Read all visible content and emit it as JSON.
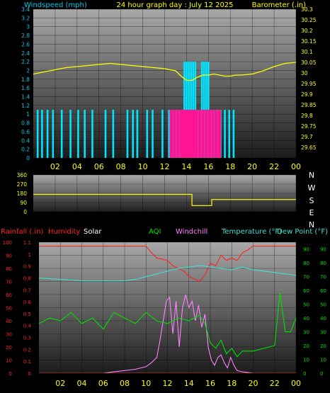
{
  "colors": {
    "background": "#000000",
    "wind_axis": "#00c8e6",
    "wind_bar": "#00e5ff",
    "gust_bar": "#ff1493",
    "barometer": "#ffff00",
    "rainfall": "#ff2020",
    "humidity": "#ff2020",
    "solar": "#ffffff",
    "aqi": "#00e000",
    "windchill": "#ff80ff",
    "temperature": "#40e0d0",
    "dew_point": "#40e0d0",
    "wind_direction": "#ffff00",
    "tick_text": "#ffff00",
    "plot_gradient_top": "#a8a8a8",
    "plot_gradient_bottom": "#1c1c1c"
  },
  "chart_data": [
    {
      "type": "line",
      "title": "24 hour graph day : July 12 2025",
      "xlabel": "",
      "x_ticks": [
        "02",
        "04",
        "06",
        "08",
        "10",
        "12",
        "14",
        "16",
        "18",
        "20",
        "22",
        "00"
      ],
      "y_left": {
        "label": "Windspeed (mph)",
        "lim": [
          0,
          3.4
        ],
        "ticks": [
          "0",
          "0.2",
          "0.4",
          "0.6",
          "0.8",
          "1",
          "1.2",
          "1.4",
          "1.6",
          "1.8",
          "2",
          "2.2",
          "2.4",
          "2.6",
          "2.8",
          "3",
          "3.2",
          "3.4"
        ]
      },
      "y_right": {
        "label": "Barometer (.in)",
        "lim": [
          29.6,
          30.3
        ],
        "ticks": [
          "29.65",
          "29.7",
          "29.75",
          "29.8",
          "29.85",
          "29.9",
          "29.95",
          "30",
          "30.05",
          "30.1",
          "30.15",
          "30.2",
          "30.25",
          "30.3"
        ]
      },
      "grid": true,
      "series": [
        {
          "kind": "bar",
          "axis": "left",
          "x": [
            0.4,
            0.8,
            1.3,
            1.8,
            2.6,
            3.4,
            4.1,
            4.7,
            5.4,
            6.6,
            7.3,
            8.6,
            9.1,
            9.5,
            10.4,
            10.9,
            11.8,
            12.4,
            12.7,
            13.0,
            13.2,
            13.4,
            13.6,
            13.8,
            14.0,
            14.2,
            14.4,
            14.6,
            14.8,
            15.0,
            15.2,
            15.4,
            15.6,
            15.8,
            16.0,
            16.2,
            16.4,
            16.6,
            16.8,
            17.1,
            17.5,
            17.9,
            18.3
          ],
          "values": [
            1.1,
            1.1,
            1.1,
            1.1,
            1.1,
            1.1,
            1.1,
            1.1,
            1.1,
            1.1,
            1.1,
            1.1,
            1.1,
            1.1,
            1.1,
            1.1,
            1.1,
            1.1,
            1.1,
            1.1,
            1.1,
            1.1,
            1.1,
            2.2,
            2.2,
            2.2,
            2.2,
            2.2,
            2.2,
            1.1,
            1.1,
            2.2,
            2.2,
            2.2,
            2.2,
            1.1,
            1.1,
            1.1,
            1.1,
            1.1,
            1.1,
            1.1,
            1.1
          ]
        },
        {
          "kind": "bar",
          "axis": "left",
          "x": [
            12.6,
            12.9,
            13.2,
            13.5,
            13.7,
            13.9,
            14.1,
            14.3,
            14.5,
            14.7,
            14.9,
            15.2,
            15.5,
            15.8,
            16.1,
            16.4,
            16.7,
            17.0
          ],
          "values": [
            1.1,
            1.1,
            1.1,
            1.1,
            1.1,
            1.1,
            1.1,
            1.1,
            1.1,
            1.1,
            1.1,
            1.1,
            1.1,
            1.1,
            1.1,
            1.1,
            1.1,
            1.1
          ]
        },
        {
          "kind": "line",
          "axis": "right",
          "x": [
            0,
            1,
            2,
            3,
            4,
            5,
            6,
            7,
            8,
            9,
            10,
            11,
            12,
            13,
            13.5,
            14,
            14.5,
            15,
            15.5,
            16,
            16.5,
            17,
            17.5,
            18,
            18.5,
            19,
            20,
            21,
            22,
            23,
            24
          ],
          "values": [
            29.995,
            30.005,
            30.015,
            30.025,
            30.03,
            30.035,
            30.04,
            30.045,
            30.04,
            30.035,
            30.03,
            30.025,
            30.02,
            30.01,
            29.985,
            29.965,
            29.965,
            29.98,
            29.99,
            29.99,
            29.995,
            29.99,
            29.985,
            29.985,
            29.99,
            29.99,
            29.995,
            30.01,
            30.03,
            30.045,
            30.05
          ]
        }
      ]
    },
    {
      "type": "line",
      "title": "",
      "y_left": {
        "lim": [
          0,
          360
        ],
        "ticks": [
          "0",
          "90",
          "180",
          "270",
          "360"
        ]
      },
      "y_right_labels": [
        "N",
        "W",
        "S",
        "E",
        "N"
      ],
      "grid": true,
      "series": [
        {
          "kind": "step",
          "x": [
            0,
            14.5,
            14.5,
            16.3,
            16.3,
            24
          ],
          "values": [
            170,
            170,
            60,
            60,
            120,
            120
          ]
        }
      ]
    },
    {
      "type": "line",
      "title": "",
      "x_ticks": [
        "02",
        "04",
        "06",
        "08",
        "10",
        "12",
        "14",
        "16",
        "18",
        "20",
        "22",
        "00"
      ],
      "y_left_rain": {
        "label": "Rainfall (.in)",
        "lim": [
          0,
          1.1
        ],
        "ticks": [
          "0",
          "0.1",
          "0.2",
          "0.3",
          "0.4",
          "0.5",
          "0.6",
          "0.7",
          "0.8",
          "0.9",
          "1",
          "1.1"
        ]
      },
      "y_left_pct": {
        "lim": [
          0,
          100
        ],
        "ticks": [
          "0",
          "10",
          "20",
          "30",
          "40",
          "50",
          "60",
          "70",
          "80",
          "90",
          "100"
        ]
      },
      "y_right_temp": {
        "label": "Temperature (°F)",
        "lim": [
          0,
          95
        ],
        "ticks": [
          "0",
          "10",
          "20",
          "30",
          "40",
          "50",
          "60",
          "70",
          "80",
          "90"
        ]
      },
      "y_right_dew": {
        "label": "Dew Point (°F)",
        "lim": [
          0,
          95
        ],
        "ticks": [
          "0",
          "10",
          "20",
          "30",
          "40",
          "50",
          "60",
          "70",
          "80",
          "90"
        ]
      },
      "legend": [
        "Rainfall (.in)",
        "Humidity",
        "Solar",
        "AQI",
        "Windchill",
        "Temperature (°F)",
        "Dew Point (°F)"
      ],
      "grid": true,
      "series": [
        {
          "name": "Humidity",
          "axis": "pct",
          "x": [
            0,
            2,
            4,
            6,
            8,
            10,
            10.5,
            11,
            12,
            12.5,
            13,
            13.5,
            14,
            14.5,
            15,
            15.5,
            16,
            16.5,
            17,
            17.5,
            18,
            18.5,
            19,
            19.5,
            20,
            21,
            22,
            23,
            24
          ],
          "values": [
            97,
            97,
            97,
            97,
            97,
            97,
            92,
            88,
            86,
            82,
            80,
            78,
            74,
            72,
            70,
            75,
            84,
            82,
            90,
            86,
            88,
            86,
            92,
            94,
            97,
            97,
            97,
            97,
            97
          ]
        },
        {
          "name": "Temperature (°F)",
          "axis": "temp",
          "x": [
            0,
            2,
            4,
            6,
            8,
            9,
            10,
            11,
            12,
            13,
            14,
            15,
            16,
            17,
            18,
            19,
            20,
            21,
            22,
            23,
            24
          ],
          "values": [
            69,
            68,
            67,
            67,
            67,
            68,
            70,
            72,
            74,
            76,
            77,
            78,
            77,
            76,
            75,
            77,
            75,
            74,
            73,
            72,
            71
          ]
        },
        {
          "name": "Windchill",
          "axis": "pct",
          "x": [
            0,
            6,
            7,
            8,
            9,
            10,
            10.5,
            11,
            11.3,
            11.6,
            11.9,
            12.2,
            12.5,
            12.8,
            13.1,
            13.4,
            13.7,
            14.0,
            14.3,
            14.6,
            14.9,
            15.2,
            15.5,
            15.8,
            16.1,
            16.4,
            16.7,
            17.0,
            17.3,
            17.6,
            17.9,
            18.2,
            18.5,
            19,
            20,
            24
          ],
          "values": [
            0,
            0,
            1,
            2,
            3,
            5,
            8,
            12,
            25,
            40,
            55,
            58,
            30,
            55,
            20,
            50,
            60,
            50,
            55,
            40,
            52,
            35,
            45,
            20,
            10,
            6,
            12,
            14,
            8,
            4,
            12,
            6,
            2,
            1,
            0,
            0
          ]
        },
        {
          "name": "AQI",
          "axis": "temp",
          "x": [
            0,
            1,
            2,
            3,
            4,
            5,
            6,
            7,
            8,
            9,
            10,
            11,
            12,
            13,
            14,
            15,
            15.5,
            16,
            16.5,
            17,
            17.5,
            18,
            18.5,
            19,
            20,
            21,
            22,
            22.5,
            23,
            23.5,
            24
          ],
          "values": [
            36,
            40,
            38,
            44,
            36,
            40,
            32,
            44,
            40,
            36,
            44,
            38,
            36,
            40,
            38,
            42,
            36,
            22,
            18,
            24,
            14,
            18,
            12,
            16,
            16,
            18,
            20,
            58,
            30,
            30,
            40
          ]
        },
        {
          "name": "Rainfall (.in)",
          "axis": "rain",
          "x": [
            0,
            24
          ],
          "values": [
            0,
            0
          ]
        }
      ]
    }
  ]
}
